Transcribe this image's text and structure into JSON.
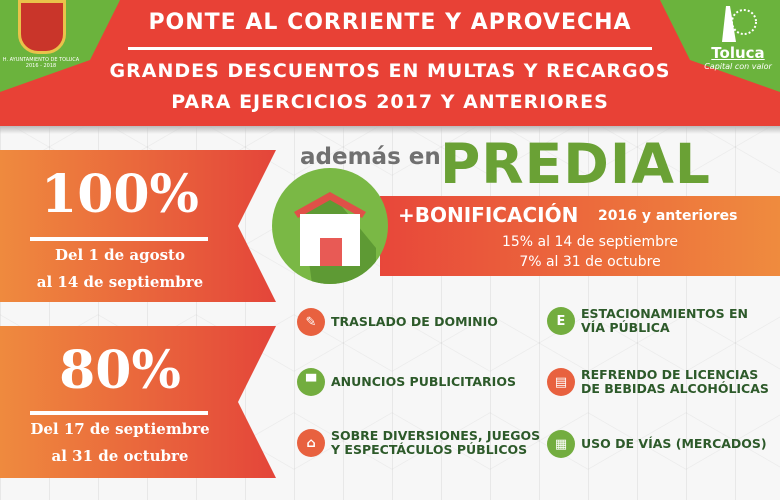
{
  "header": {
    "line1": "PONTE AL CORRIENTE Y APROVECHA",
    "line2": "GRANDES DESCUENTOS EN MULTAS Y RECARGOS",
    "line3": "PARA EJERCICIOS 2017 Y ANTERIORES",
    "logo_left_text": "H. AYUNTAMIENTO DE TOLUCA 2016 - 2018",
    "logo_right_name": "Toluca",
    "logo_right_slogan": "Capital con valor"
  },
  "discounts": [
    {
      "percent": "100%",
      "line1": "Del 1 de agosto",
      "line2": "al 14 de septiembre"
    },
    {
      "percent": "80%",
      "line1": "Del 17 de septiembre",
      "line2": "al 31 de octubre"
    }
  ],
  "predial": {
    "prefix": "además en",
    "title": "PREDIAL",
    "bonus": "+BONIFICACIÓN",
    "bonus_scope": "2016 y anteriores",
    "line1": "15% al 14 de septiembre",
    "line2": "7% al 31 de octubre"
  },
  "colors": {
    "red": "#e84136",
    "green": "#6bb33d",
    "orange": "#ef8a3e",
    "dark_green": "#2d5a2a"
  },
  "items": [
    {
      "label": "TRASLADO DE DOMINIO",
      "icon": "document-pen-icon",
      "color": "orange"
    },
    {
      "label": "ESTACIONAMIENTOS EN VÍA PÚBLICA",
      "icon": "letter-e-icon",
      "glyph": "E",
      "color": "green"
    },
    {
      "label": "ANUNCIOS PUBLICITARIOS",
      "icon": "billboard-icon",
      "color": "green"
    },
    {
      "label": "REFRENDO DE LICENCIAS DE BEBIDAS ALCOHÓLICAS",
      "icon": "certificate-icon",
      "color": "orange"
    },
    {
      "label": "SOBRE DIVERSIONES, JUEGOS Y ESPECTÁCULOS PÚBLICOS",
      "icon": "circus-tent-icon",
      "color": "orange"
    },
    {
      "label": "USO DE VÍAS (MERCADOS)",
      "icon": "shopping-cart-icon",
      "color": "green"
    }
  ]
}
